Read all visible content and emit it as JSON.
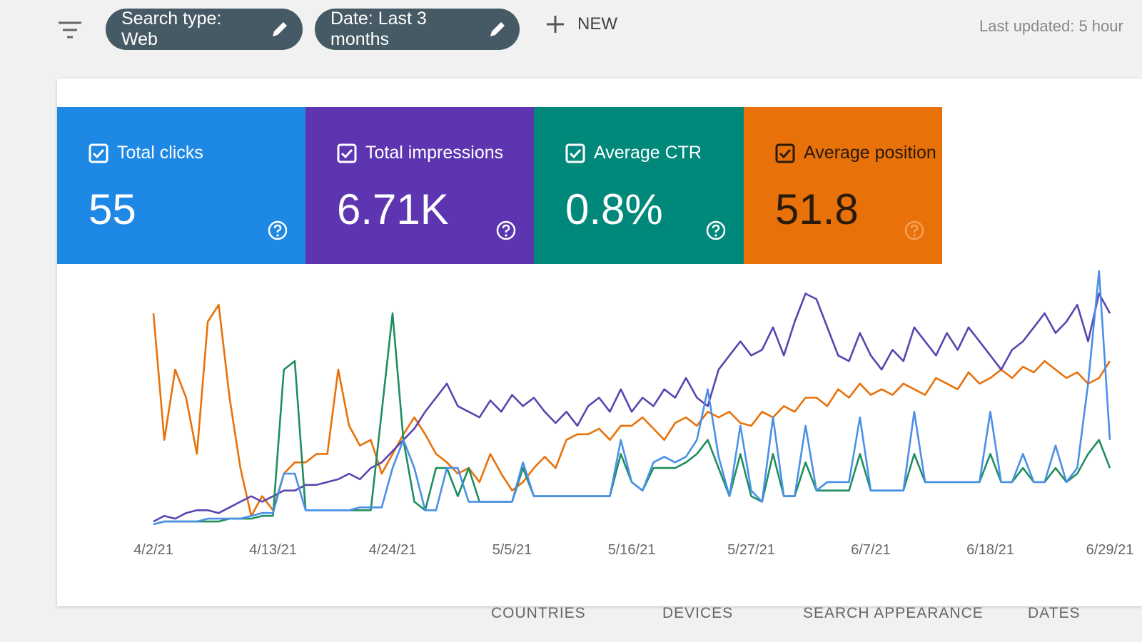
{
  "header": {
    "filter_chips": [
      "Search type: Web",
      "Date: Last 3 months"
    ],
    "new_button": "NEW",
    "last_updated": "Last updated: 5 hour"
  },
  "cards": [
    {
      "label": "Total clicks",
      "value": "55"
    },
    {
      "label": "Total impressions",
      "value": "6.71K"
    },
    {
      "label": "Average CTR",
      "value": "0.8%"
    },
    {
      "label": "Average position",
      "value": "51.8"
    }
  ],
  "chart_data": {
    "type": "line",
    "categories": [
      "4/2/21",
      null,
      null,
      null,
      null,
      null,
      null,
      null,
      null,
      null,
      null,
      "4/13/21",
      null,
      null,
      null,
      null,
      null,
      null,
      null,
      null,
      null,
      null,
      "4/24/21",
      null,
      null,
      null,
      null,
      null,
      null,
      null,
      null,
      null,
      null,
      "5/5/21",
      null,
      null,
      null,
      null,
      null,
      null,
      null,
      null,
      null,
      null,
      "5/16/21",
      null,
      null,
      null,
      null,
      null,
      null,
      null,
      null,
      null,
      null,
      "5/27/21",
      null,
      null,
      null,
      null,
      null,
      null,
      null,
      null,
      null,
      null,
      "6/7/21",
      null,
      null,
      null,
      null,
      null,
      null,
      null,
      null,
      null,
      null,
      "6/18/21",
      null,
      null,
      null,
      null,
      null,
      null,
      null,
      null,
      null,
      null,
      "6/29/21"
    ],
    "series": [
      {
        "color": "#4a8fe8",
        "values": [
          0,
          1,
          1,
          1,
          1,
          2,
          2,
          2,
          2,
          3,
          4,
          4,
          18,
          18,
          5,
          5,
          5,
          5,
          5,
          6,
          6,
          6,
          20,
          30,
          20,
          5,
          5,
          20,
          20,
          8,
          8,
          8,
          8,
          8,
          22,
          10,
          10,
          10,
          10,
          10,
          10,
          10,
          10,
          30,
          15,
          12,
          22,
          24,
          22,
          24,
          30,
          48,
          24,
          10,
          35,
          12,
          8,
          38,
          10,
          10,
          35,
          12,
          15,
          15,
          15,
          38,
          12,
          12,
          12,
          12,
          40,
          15,
          15,
          15,
          15,
          15,
          15,
          40,
          15,
          15,
          25,
          15,
          15,
          28,
          15,
          20,
          50,
          90,
          30
        ]
      },
      {
        "color": "#5a44b0",
        "values": [
          1,
          3,
          2,
          4,
          5,
          5,
          4,
          6,
          8,
          10,
          8,
          10,
          12,
          12,
          14,
          14,
          15,
          16,
          18,
          16,
          20,
          22,
          26,
          30,
          34,
          40,
          45,
          50,
          42,
          40,
          38,
          44,
          40,
          46,
          42,
          45,
          40,
          36,
          40,
          35,
          42,
          45,
          40,
          48,
          40,
          45,
          42,
          48,
          45,
          52,
          45,
          42,
          55,
          60,
          65,
          60,
          62,
          70,
          60,
          72,
          82,
          80,
          70,
          60,
          58,
          68,
          60,
          55,
          62,
          58,
          70,
          65,
          60,
          68,
          62,
          70,
          65,
          60,
          55,
          62,
          65,
          70,
          75,
          68,
          72,
          78,
          65,
          82,
          75
        ]
      },
      {
        "color": "#1e8e5e",
        "values": [
          0,
          1,
          1,
          1,
          1,
          1,
          1,
          2,
          2,
          2,
          3,
          3,
          55,
          58,
          5,
          5,
          5,
          5,
          5,
          5,
          5,
          40,
          75,
          30,
          8,
          5,
          20,
          20,
          10,
          20,
          8,
          8,
          8,
          8,
          20,
          10,
          10,
          10,
          10,
          10,
          10,
          10,
          10,
          25,
          15,
          12,
          20,
          20,
          20,
          22,
          25,
          30,
          20,
          10,
          25,
          10,
          8,
          25,
          10,
          10,
          22,
          12,
          12,
          12,
          12,
          25,
          12,
          12,
          12,
          12,
          25,
          15,
          15,
          15,
          15,
          15,
          15,
          25,
          15,
          15,
          20,
          15,
          15,
          20,
          15,
          18,
          25,
          30,
          20
        ]
      },
      {
        "color": "#e8710a",
        "values": [
          75,
          30,
          55,
          45,
          25,
          72,
          78,
          45,
          20,
          3,
          10,
          5,
          18,
          22,
          22,
          25,
          25,
          55,
          35,
          28,
          30,
          18,
          25,
          32,
          38,
          32,
          25,
          22,
          18,
          20,
          15,
          25,
          18,
          12,
          15,
          20,
          24,
          20,
          30,
          32,
          32,
          34,
          30,
          35,
          35,
          38,
          34,
          30,
          36,
          38,
          35,
          40,
          38,
          40,
          36,
          35,
          40,
          38,
          42,
          40,
          45,
          45,
          42,
          48,
          45,
          50,
          46,
          48,
          46,
          50,
          48,
          46,
          52,
          50,
          48,
          54,
          50,
          52,
          55,
          52,
          56,
          54,
          58,
          55,
          52,
          54,
          50,
          52,
          58
        ]
      }
    ]
  },
  "tabs": [
    "COUNTRIES",
    "DEVICES",
    "SEARCH APPEARANCE",
    "DATES"
  ]
}
